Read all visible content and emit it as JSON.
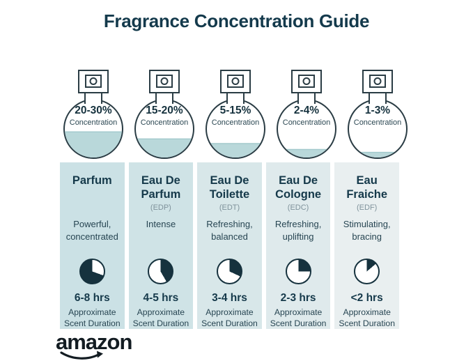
{
  "title": "Fragrance Concentration Guide",
  "brand": {
    "logo_text": "amazon"
  },
  "colors": {
    "ink": "#16323e",
    "title": "#143a4c",
    "text": "#274552",
    "abbr": "#7f929b",
    "liquid": "#b9d8da",
    "column_bgs": [
      "#cbe1e5",
      "#cfe3e6",
      "#d8e7e9",
      "#dfeaec",
      "#e9eff0"
    ]
  },
  "concentration_label": "Concentration",
  "columns": [
    {
      "name": "Parfum",
      "abbr": "",
      "concentration": "20-30%",
      "bottle_fill_pct": 45,
      "description": "Powerful, concentrated",
      "duration": "6-8 hrs",
      "duration_label": "Approximate Scent Duration",
      "clock_segment_deg": [
        110,
        360
      ]
    },
    {
      "name": "Eau De Parfum",
      "abbr": "(EDP)",
      "concentration": "15-20%",
      "bottle_fill_pct": 33,
      "description": "Intense",
      "duration": "4-5 hrs",
      "duration_label": "Approximate Scent Duration",
      "clock_segment_deg": [
        0,
        150
      ]
    },
    {
      "name": "Eau De Toilette",
      "abbr": "(EDT)",
      "concentration": "5-15%",
      "bottle_fill_pct": 25,
      "description": "Refreshing, balanced",
      "duration": "3-4 hrs",
      "duration_label": "Approximate Scent Duration",
      "clock_segment_deg": [
        0,
        115
      ]
    },
    {
      "name": "Eau De Cologne",
      "abbr": "(EDC)",
      "concentration": "2-4%",
      "bottle_fill_pct": 15,
      "description": "Refreshing, uplifting",
      "duration": "2-3 hrs",
      "duration_label": "Approximate Scent Duration",
      "clock_segment_deg": [
        0,
        90
      ]
    },
    {
      "name": "Eau Fraiche",
      "abbr": "(EDF)",
      "concentration": "1-3%",
      "bottle_fill_pct": 10,
      "description": "Stimulating, bracing",
      "duration": "<2 hrs",
      "duration_label": "Approximate Scent Duration",
      "clock_segment_deg": [
        0,
        50
      ]
    }
  ]
}
